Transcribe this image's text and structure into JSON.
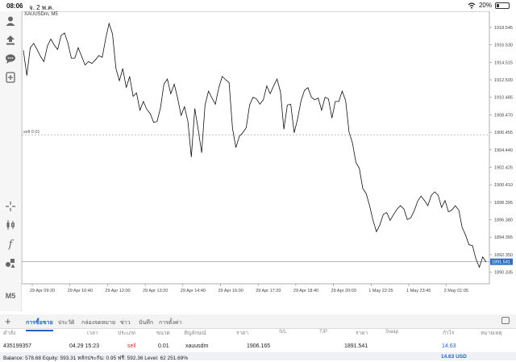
{
  "status": {
    "time": "08:06",
    "date": "จ. 2 พ.ค.",
    "battery": "20%",
    "battery_level": 0.2
  },
  "sidebar": {
    "timeframe": "M5"
  },
  "chart": {
    "title": "XAUUSDm, M5",
    "order_line_label": "sell 0.01"
  },
  "chart_data": {
    "type": "line",
    "title": "XAUUSDm, M5",
    "x_ticks": [
      "29 Apr 09:20",
      "29 Apr 10:40",
      "29 Apr 12:00",
      "29 Apr 13:20",
      "29 Apr 14:40",
      "29 Apr 16:00",
      "29 Apr 17:20",
      "29 Apr 18:40",
      "29 Apr 20:00",
      "1 May 22:25",
      "1 May 23:45",
      "2 May 01:05"
    ],
    "y_ticks": [
      1918.545,
      1916.53,
      1914.515,
      1912.5,
      1910.485,
      1908.47,
      1906.455,
      1904.44,
      1902.425,
      1900.41,
      1898.395,
      1896.38,
      1894.365,
      1892.35,
      1890.335
    ],
    "ylim": [
      1889.0,
      1920.4
    ],
    "order_line": {
      "label": "sell 0.01",
      "price": 1906.165
    },
    "current_price": 1891.541,
    "grid": false,
    "series": [
      {
        "values": [
          1915.9,
          1913.0,
          1916.2,
          1916.7,
          1916.0,
          1915.2,
          1914.6,
          1916.4,
          1917.2,
          1916.5,
          1916.0,
          1917.6,
          1917.9,
          1916.7,
          1915.0,
          1915.0,
          1916.2,
          1915.2,
          1914.2,
          1914.6,
          1914.4,
          1914.8,
          1915.3,
          1915.1,
          1917.2,
          1919.0,
          1917.8,
          1913.8,
          1912.4,
          1913.8,
          1911.6,
          1912.9,
          1910.6,
          1911.0,
          1909.0,
          1910.0,
          1909.1,
          1908.6,
          1907.6,
          1907.7,
          1909.3,
          1912.0,
          1912.6,
          1910.9,
          1912.0,
          1910.4,
          1908.4,
          1909.4,
          1907.7,
          1903.6,
          1909.2,
          1906.8,
          1904.1,
          1909.6,
          1911.2,
          1910.4,
          1909.7,
          1911.6,
          1912.9,
          1912.5,
          1912.2,
          1906.9,
          1904.7,
          1906.0,
          1906.4,
          1907.0,
          1909.6,
          1910.5,
          1910.3,
          1909.7,
          1910.2,
          1911.8,
          1910.9,
          1911.8,
          1912.6,
          1911.1,
          1906.8,
          1909.6,
          1909.7,
          1906.4,
          1908.0,
          1910.1,
          1911.3,
          1911.6,
          1910.5,
          1910.2,
          1910.4,
          1909.0,
          1910.5,
          1910.3,
          1908.1,
          1910.0,
          1910.0,
          1911.2,
          1910.1,
          1906.5,
          1905.2,
          1903.0,
          1902.3,
          1900.0,
          1899.4,
          1898.0,
          1896.3,
          1895.0,
          1895.8,
          1897.0,
          1897.2,
          1896.3,
          1897.0,
          1897.6,
          1898.0,
          1897.6,
          1896.4,
          1896.6,
          1897.4,
          1898.5,
          1899.1,
          1898.6,
          1898.0,
          1899.2,
          1899.6,
          1899.2,
          1897.8,
          1898.6,
          1897.3,
          1897.5,
          1898.0,
          1897.5,
          1895.5,
          1894.6,
          1893.5,
          1893.4,
          1891.9,
          1890.9,
          1892.1,
          1891.5
        ]
      }
    ]
  },
  "tabs": [
    "การซื้อขาย",
    "ประวัติ",
    "กล่องจดหมาย",
    "ข่าว",
    "บันทึก",
    "การตั้งค่า"
  ],
  "table": {
    "headers": [
      "คำสั่ง",
      "เวลา",
      "ประเภท",
      "ขนาด",
      "สัญลักษณ์",
      "ราคา",
      "S/L",
      "T/P",
      "ราคา",
      "Swap",
      "กำไร",
      "หมายเหตุ"
    ],
    "row": {
      "order": "435199357",
      "time": "04.29 15:23",
      "type": "sell",
      "size": "0.01",
      "symbol": "xauusdm",
      "open_price": "1906.165",
      "sl": "",
      "tp": "",
      "price": "1891.541",
      "swap": "",
      "profit": "14.63",
      "comment": ""
    }
  },
  "footer": {
    "summary": "Balance: 578.68 Equity: 593.31 หลักประกัน: 0.95 ฟรี: 592.36 Level: 62 251.69%",
    "total": "14.63",
    "currency": "USD"
  }
}
